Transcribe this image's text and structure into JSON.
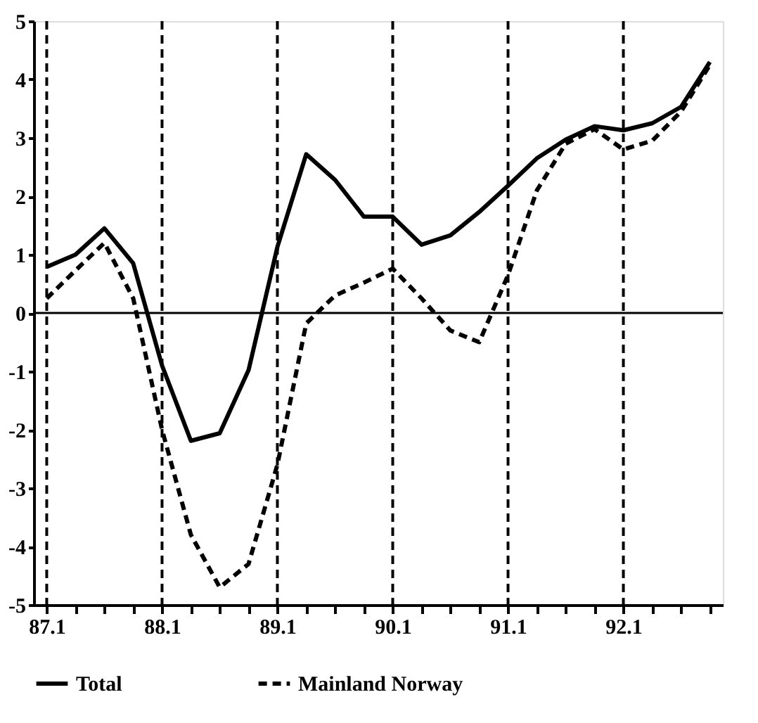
{
  "chart_data": {
    "type": "line",
    "categories": [
      "87.1",
      null,
      null,
      null,
      "88.1",
      null,
      null,
      null,
      "89.1",
      null,
      null,
      null,
      "90.1",
      null,
      null,
      null,
      "91.1",
      null,
      null,
      null,
      "92.1",
      null,
      null,
      null
    ],
    "series": [
      {
        "name": "Total",
        "color": "#000000",
        "line_style": "solid",
        "values": [
          0.79,
          1.0,
          1.45,
          0.85,
          -0.9,
          -2.19,
          -2.06,
          -0.98,
          1.13,
          2.72,
          2.28,
          1.65,
          1.65,
          1.17,
          1.33,
          1.73,
          2.18,
          2.65,
          2.97,
          3.2,
          3.13,
          3.25,
          3.53,
          4.3
        ]
      },
      {
        "name": "Mainland Norway",
        "color": "#000000",
        "line_style": "dashed",
        "values": [
          0.25,
          0.73,
          1.2,
          0.25,
          -2.0,
          -3.8,
          -4.7,
          -4.3,
          -2.6,
          -0.18,
          0.3,
          0.52,
          0.76,
          0.25,
          -0.3,
          -0.5,
          0.65,
          2.1,
          2.9,
          3.15,
          2.8,
          2.95,
          3.45,
          4.25
        ]
      }
    ],
    "ylim": [
      -5,
      5
    ],
    "yticks": [
      -5,
      -4,
      -3,
      -2,
      -1,
      0,
      1,
      2,
      3,
      4,
      5
    ],
    "ref_lines": [
      {
        "axis": "y",
        "value": 0,
        "line_style": "solid"
      },
      {
        "axis": "x",
        "value": "87.1",
        "line_style": "dashed"
      },
      {
        "axis": "x",
        "value": "88.1",
        "line_style": "dashed"
      },
      {
        "axis": "x",
        "value": "89.1",
        "line_style": "dashed"
      },
      {
        "axis": "x",
        "value": "90.1",
        "line_style": "dashed"
      },
      {
        "axis": "x",
        "value": "91.1",
        "line_style": "dashed"
      },
      {
        "axis": "x",
        "value": "92.1",
        "line_style": "dashed"
      }
    ],
    "legend": "bottom"
  }
}
